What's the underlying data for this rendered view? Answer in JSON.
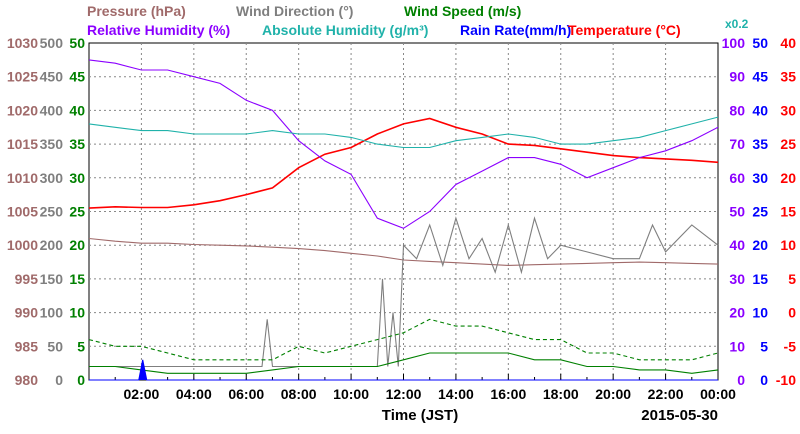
{
  "chart_data": {
    "type": "line",
    "legend": [
      {
        "text": "Pressure (hPa)",
        "color": "#a06a6a"
      },
      {
        "text": "Wind Direction (°)",
        "color": "#7f7f7f"
      },
      {
        "text": "Wind Speed (m/s)",
        "color": "#008000"
      },
      {
        "text": "Relative Humidity (%)",
        "color": "#8b00ff"
      },
      {
        "text": "Absolute Humidity (g/m³)",
        "color": "#20b2aa"
      },
      {
        "text": "Rain Rate(mm/h)",
        "color": "#0000ff"
      },
      {
        "text": "Temperature (°C)",
        "color": "#ff0000"
      }
    ],
    "abs_humidity_scale_note": "x0.2",
    "xlabel": "Time (JST)",
    "date_label": "2015-05-30",
    "x_ticks": [
      "02:00",
      "04:00",
      "06:00",
      "08:00",
      "10:00",
      "12:00",
      "14:00",
      "16:00",
      "18:00",
      "20:00",
      "22:00",
      "00:00"
    ],
    "x_range_hours": [
      0,
      24
    ],
    "grid": true,
    "left_axes": [
      {
        "name": "Pressure (hPa)",
        "color": "#a06a6a",
        "ylim": [
          980,
          1030
        ],
        "ticks": [
          980,
          985,
          990,
          995,
          1000,
          1005,
          1010,
          1015,
          1020,
          1025,
          1030
        ]
      },
      {
        "name": "Wind Direction (°)",
        "color": "#7f7f7f",
        "ylim": [
          0,
          500
        ],
        "ticks": [
          0,
          50,
          100,
          150,
          200,
          250,
          300,
          350,
          400,
          450,
          500
        ]
      },
      {
        "name": "Wind Speed (m/s)",
        "color": "#008000",
        "ylim": [
          0,
          50
        ],
        "ticks": [
          0,
          5,
          10,
          15,
          20,
          25,
          30,
          35,
          40,
          45,
          50
        ]
      }
    ],
    "right_axes": [
      {
        "name": "Relative Humidity (%)",
        "color": "#8b00ff",
        "ylim": [
          0,
          100
        ],
        "ticks": [
          0,
          10,
          20,
          30,
          40,
          50,
          60,
          70,
          80,
          90,
          100
        ]
      },
      {
        "name": "Rain Rate(mm/h)",
        "color": "#0000ff",
        "ylim": [
          0,
          50
        ],
        "ticks": [
          0,
          5,
          10,
          15,
          20,
          25,
          30,
          35,
          40,
          45,
          50
        ]
      },
      {
        "name": "Temperature (°C)",
        "color": "#ff0000",
        "ylim": [
          -10,
          40
        ],
        "ticks": [
          -10,
          -5,
          0,
          5,
          10,
          15,
          20,
          25,
          30,
          35,
          40
        ]
      }
    ],
    "series": [
      {
        "name": "Temperature (°C)",
        "axis": "temperature",
        "color": "#ff0000",
        "x": [
          0,
          1,
          2,
          3,
          4,
          5,
          6,
          7,
          8,
          9,
          10,
          11,
          12,
          13,
          14,
          15,
          16,
          17,
          18,
          19,
          20,
          21,
          22,
          23,
          24
        ],
        "y": [
          15.5,
          15.7,
          15.6,
          15.6,
          16.0,
          16.6,
          17.5,
          18.5,
          21.5,
          23.5,
          24.5,
          26.5,
          28.0,
          28.8,
          27.5,
          26.5,
          25.0,
          24.8,
          24.3,
          23.8,
          23.3,
          23.0,
          22.8,
          22.6,
          22.3
        ]
      },
      {
        "name": "Relative Humidity (%)",
        "axis": "humidity",
        "color": "#8b00ff",
        "x": [
          0,
          1,
          2,
          3,
          4,
          5,
          6,
          7,
          8,
          9,
          10,
          11,
          12,
          13,
          14,
          15,
          16,
          17,
          18,
          19,
          20,
          21,
          22,
          23,
          24
        ],
        "y": [
          95,
          94,
          92,
          92,
          90,
          88,
          83,
          80,
          71,
          65,
          61,
          48,
          45,
          50,
          58,
          62,
          66,
          66,
          64,
          60,
          63,
          66,
          68,
          71,
          75
        ]
      },
      {
        "name": "Absolute Humidity (g/m³)",
        "axis": "abs_humidity_x0.2",
        "color": "#20b2aa",
        "x": [
          0,
          1,
          2,
          3,
          4,
          5,
          6,
          7,
          8,
          9,
          10,
          11,
          12,
          13,
          14,
          15,
          16,
          17,
          18,
          19,
          20,
          21,
          22,
          23,
          24
        ],
        "y": [
          76,
          75,
          74,
          74,
          73,
          73,
          73,
          74,
          73,
          73,
          72,
          70,
          69,
          69,
          71,
          72,
          73,
          72,
          70,
          70,
          71,
          72,
          74,
          76,
          78
        ]
      },
      {
        "name": "Pressure (hPa)",
        "axis": "pressure",
        "color": "#a06a6a",
        "x": [
          0,
          1,
          2,
          3,
          4,
          5,
          6,
          7,
          8,
          9,
          10,
          11,
          12,
          13,
          14,
          15,
          16,
          17,
          18,
          19,
          20,
          21,
          22,
          23,
          24
        ],
        "y": [
          1001.0,
          1000.6,
          1000.3,
          1000.3,
          1000.1,
          1000.0,
          999.9,
          999.7,
          999.5,
          999.2,
          998.8,
          998.4,
          997.8,
          997.6,
          997.4,
          997.2,
          997.0,
          997.1,
          997.2,
          997.3,
          997.4,
          997.5,
          997.4,
          997.3,
          997.2
        ]
      },
      {
        "name": "Wind Direction (°)",
        "axis": "wind_direction",
        "color": "#7f7f7f",
        "x": [
          0,
          1,
          2,
          3,
          4,
          5,
          6,
          6.6,
          6.8,
          7.0,
          7.5,
          8,
          9,
          10,
          11,
          11.2,
          11.4,
          11.6,
          11.8,
          12,
          12.5,
          13,
          13.5,
          14,
          14.5,
          15,
          15.5,
          16,
          16.5,
          17,
          17.5,
          18,
          19,
          20,
          21,
          21.5,
          22,
          23,
          24
        ],
        "y": [
          20,
          20,
          20,
          20,
          20,
          20,
          20,
          20,
          90,
          20,
          20,
          20,
          20,
          20,
          20,
          150,
          20,
          100,
          20,
          200,
          180,
          230,
          170,
          240,
          180,
          210,
          160,
          230,
          160,
          240,
          180,
          200,
          190,
          180,
          180,
          230,
          190,
          230,
          200
        ]
      },
      {
        "name": "Wind Speed (m/s)",
        "axis": "wind_speed",
        "color": "#008000",
        "x": [
          0,
          1,
          2,
          3,
          4,
          5,
          6,
          7,
          8,
          9,
          10,
          11,
          12,
          13,
          14,
          15,
          16,
          17,
          18,
          19,
          20,
          21,
          22,
          23,
          24
        ],
        "y": [
          2,
          2,
          1.5,
          1,
          1,
          1,
          1,
          1.5,
          2,
          2,
          2,
          2,
          3,
          4,
          4,
          4,
          4,
          3,
          3,
          2,
          2,
          1.5,
          1.5,
          1,
          1.5
        ]
      },
      {
        "name": "Wind Speed gust (m/s)",
        "axis": "wind_speed",
        "color": "#008000",
        "dashed": true,
        "x": [
          0,
          1,
          2,
          3,
          4,
          5,
          6,
          7,
          8,
          9,
          10,
          11,
          12,
          13,
          14,
          15,
          16,
          17,
          18,
          19,
          20,
          21,
          22,
          23,
          24
        ],
        "y": [
          6,
          5,
          5,
          4,
          3,
          3,
          3,
          3,
          5,
          4,
          5,
          6,
          7,
          9,
          8,
          8,
          7,
          6,
          6,
          4,
          4,
          3,
          3,
          3,
          4
        ]
      },
      {
        "name": "Rain Rate(mm/h)",
        "axis": "rain",
        "color": "#0000ff",
        "x": [
          0,
          1.9,
          2.05,
          2.2,
          24
        ],
        "y": [
          0,
          0,
          3,
          0,
          0
        ]
      }
    ]
  }
}
